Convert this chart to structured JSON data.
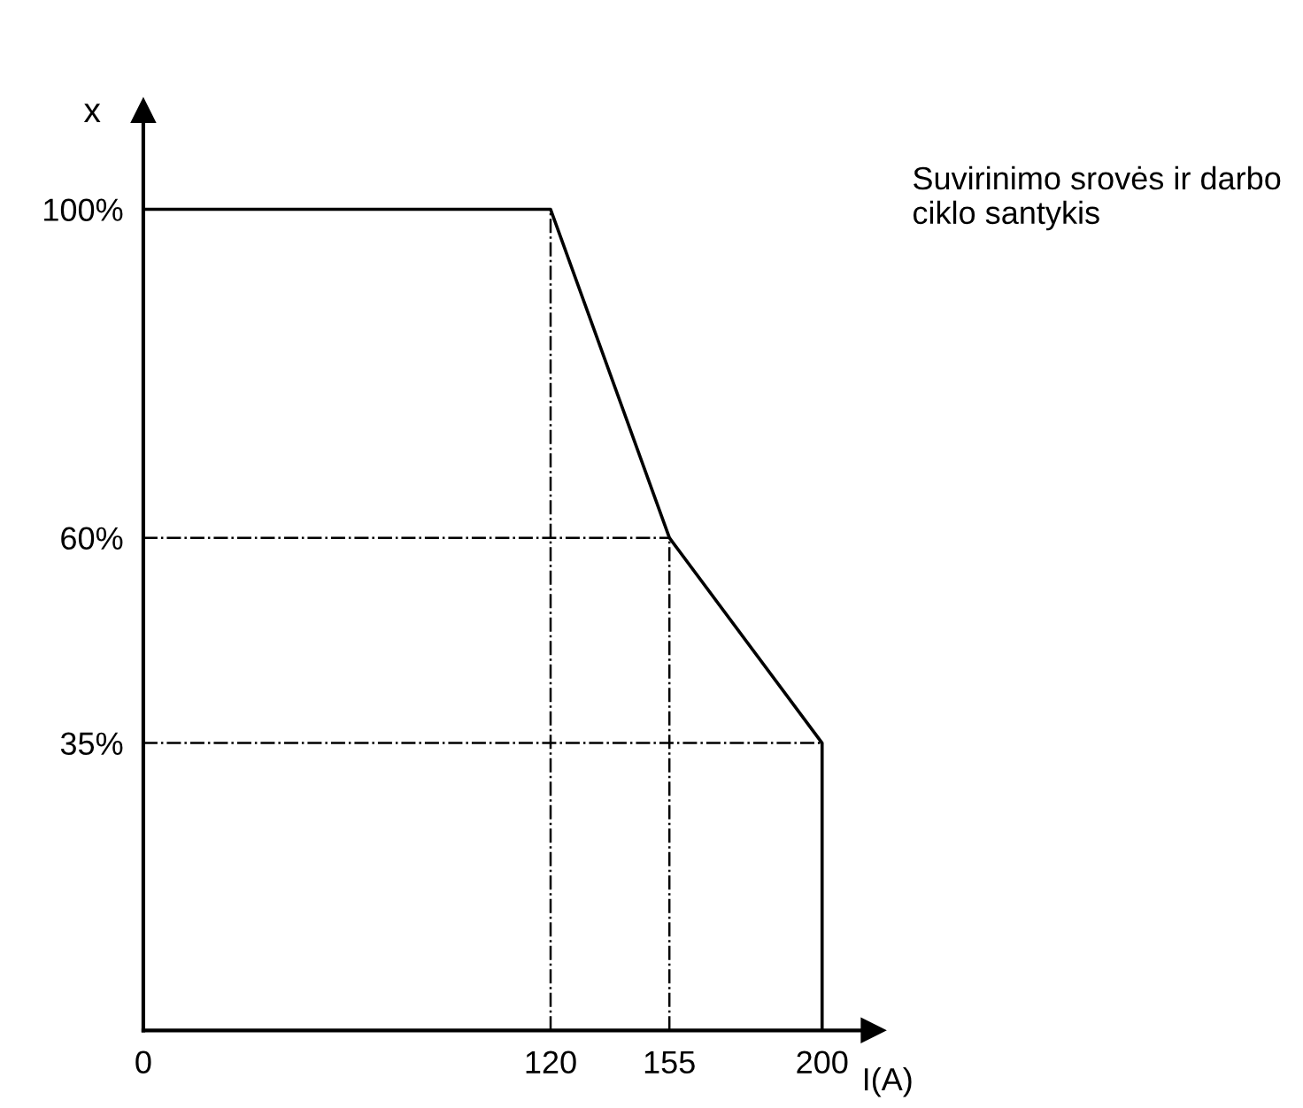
{
  "chart_data": {
    "type": "line",
    "xlabel": "I(A)",
    "ylabel": "x",
    "x": [
      0,
      120,
      155,
      200,
      200
    ],
    "series": [
      {
        "color": "#000000",
        "values": [
          100,
          100,
          60,
          35,
          0
        ]
      }
    ],
    "xlim": [
      0,
      215
    ],
    "ylim": [
      0,
      112
    ],
    "xticks": [
      0,
      120,
      155,
      200
    ],
    "yticks": [
      {
        "value": 35,
        "label": "35%"
      },
      {
        "value": 60,
        "label": "60%"
      },
      {
        "value": 100,
        "label": "100%"
      }
    ],
    "ref_lines": [
      {
        "axis": "y",
        "value": 60,
        "line_style": "dashdot",
        "color": "#000000"
      },
      {
        "axis": "y",
        "value": 35,
        "line_style": "dashdot",
        "color": "#000000"
      },
      {
        "axis": "x",
        "value": 120,
        "line_style": "dashdot",
        "color": "#000000"
      },
      {
        "axis": "x",
        "value": 155,
        "line_style": "dashdot",
        "color": "#000000"
      }
    ],
    "annotations": [
      "Suvirinimo srovės ir darbo ciklo santykis"
    ],
    "grid": false,
    "legend": false,
    "marker": "none",
    "line_style": "solid"
  }
}
